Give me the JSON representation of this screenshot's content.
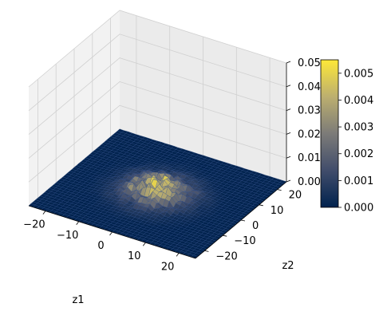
{
  "chart_data": {
    "type": "surface3d",
    "title": "",
    "xlabel": "z1",
    "ylabel": "z2",
    "zlabel": "",
    "x_ticks": [
      -20,
      -10,
      0,
      10,
      20
    ],
    "x_tick_labels": [
      "−20",
      "−10",
      "0",
      "10",
      "20"
    ],
    "y_ticks": [
      -20,
      -10,
      0,
      10,
      20
    ],
    "y_tick_labels": [
      "−20",
      "−10",
      "0",
      "10",
      "20"
    ],
    "z_ticks": [
      0.0,
      0.01,
      0.02,
      0.03,
      0.04,
      0.05
    ],
    "z_tick_labels": [
      "0.00",
      "0.01",
      "0.02",
      "0.03",
      "0.04",
      "0.05"
    ],
    "xlim": [
      -25,
      25
    ],
    "ylim": [
      -25,
      25
    ],
    "zlim": [
      0,
      0.05
    ],
    "grid": true,
    "colormap": "cividis",
    "colorbar": {
      "range": [
        0.0,
        0.0055
      ],
      "ticks": [
        0.0,
        0.001,
        0.002,
        0.003,
        0.004,
        0.005
      ],
      "tick_labels": [
        "0.000",
        "0.001",
        "0.002",
        "0.003",
        "0.004",
        "0.005"
      ],
      "colors": [
        "#00224e",
        "#414d6b",
        "#7c7b78",
        "#bcaf6f",
        "#fee838"
      ]
    },
    "surface": {
      "description": "noisy 2D density concentrated near the origin",
      "peak_value": 0.0055,
      "spread_sigma": 6.5,
      "grid_min": -25,
      "grid_max": 25,
      "grid_step": 1.25
    }
  }
}
